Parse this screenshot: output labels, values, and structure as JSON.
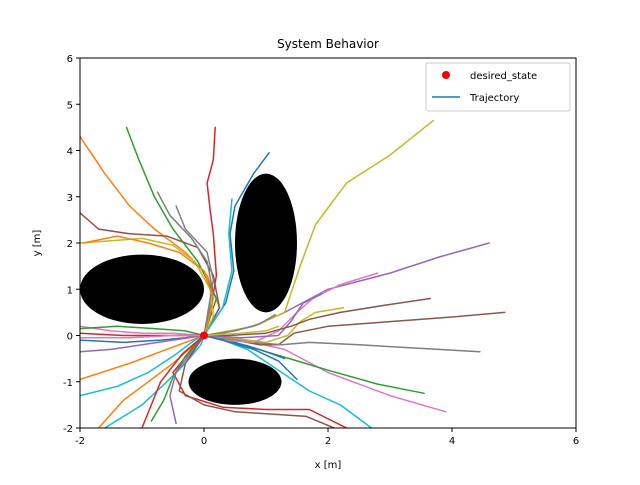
{
  "chart_data": {
    "type": "line",
    "title": "System Behavior",
    "xlabel": "x [m]",
    "ylabel": "y [m]",
    "xlim": [
      -2,
      6
    ],
    "ylim": [
      -2,
      6
    ],
    "xticks": [
      "-2",
      "0",
      "2",
      "4",
      "6"
    ],
    "yticks": [
      "-2",
      "-1",
      "0",
      "1",
      "2",
      "3",
      "4",
      "5",
      "6"
    ],
    "grid": false,
    "legend": {
      "placement": "top-right",
      "entries": [
        {
          "label": "desired_state",
          "marker": "dot",
          "color": "#ff0000"
        },
        {
          "label": "Trajectory",
          "marker": "line",
          "color": "#1f77b4"
        }
      ]
    },
    "desired_state": {
      "x": 0,
      "y": 0
    },
    "obstacles": [
      {
        "shape": "ellipse",
        "cx": -1.0,
        "cy": 1.0,
        "rx": 1.0,
        "ry": 0.75,
        "color": "#000000"
      },
      {
        "shape": "ellipse",
        "cx": 1.0,
        "cy": 2.0,
        "rx": 0.5,
        "ry": 1.5,
        "color": "#000000"
      },
      {
        "shape": "ellipse",
        "cx": 0.5,
        "cy": -1.0,
        "rx": 0.75,
        "ry": 0.5,
        "color": "#000000"
      }
    ],
    "series": [
      {
        "color": "#1f77b4",
        "points": [
          [
            1.05,
            3.95
          ],
          [
            0.8,
            3.5
          ],
          [
            0.5,
            2.8
          ],
          [
            0.42,
            2.2
          ],
          [
            0.48,
            1.4
          ],
          [
            0.35,
            0.7
          ],
          [
            0.0,
            0.0
          ]
        ]
      },
      {
        "color": "#ff7f0e",
        "points": [
          [
            -2.0,
            4.3
          ],
          [
            -1.6,
            3.5
          ],
          [
            -1.2,
            2.8
          ],
          [
            -0.8,
            2.3
          ],
          [
            -0.3,
            1.8
          ],
          [
            0.05,
            1.3
          ],
          [
            0.25,
            0.6
          ],
          [
            0.0,
            0.0
          ]
        ]
      },
      {
        "color": "#2ca02c",
        "points": [
          [
            -1.25,
            4.5
          ],
          [
            -1.05,
            3.8
          ],
          [
            -0.8,
            3.0
          ],
          [
            -0.5,
            2.3
          ],
          [
            -0.1,
            1.6
          ],
          [
            0.2,
            0.8
          ],
          [
            0.0,
            0.0
          ]
        ]
      },
      {
        "color": "#d62728",
        "points": [
          [
            0.18,
            4.5
          ],
          [
            0.15,
            3.8
          ],
          [
            0.05,
            3.3
          ],
          [
            0.1,
            2.7
          ],
          [
            0.15,
            2.2
          ],
          [
            0.2,
            1.3
          ],
          [
            0.1,
            0.5
          ],
          [
            0.0,
            0.0
          ]
        ]
      },
      {
        "color": "#9467bd",
        "points": [
          [
            4.6,
            2.0
          ],
          [
            3.8,
            1.7
          ],
          [
            3.0,
            1.35
          ],
          [
            2.0,
            1.0
          ],
          [
            1.3,
            0.5
          ],
          [
            0.8,
            0.2
          ],
          [
            0.3,
            0.05
          ],
          [
            0.0,
            0.0
          ]
        ]
      },
      {
        "color": "#8c564b",
        "points": [
          [
            -2.0,
            2.65
          ],
          [
            -1.7,
            2.3
          ],
          [
            -1.2,
            2.2
          ],
          [
            -0.6,
            2.15
          ],
          [
            -0.1,
            1.9
          ],
          [
            0.15,
            1.3
          ],
          [
            0.25,
            0.6
          ],
          [
            0.0,
            0.0
          ]
        ]
      },
      {
        "color": "#e377c2",
        "points": [
          [
            3.9,
            -1.65
          ],
          [
            3.0,
            -1.3
          ],
          [
            2.0,
            -0.8
          ],
          [
            1.3,
            -0.3
          ],
          [
            0.8,
            -0.15
          ],
          [
            0.3,
            -0.05
          ],
          [
            0.0,
            0.0
          ]
        ]
      },
      {
        "color": "#7f7f7f",
        "points": [
          [
            -0.75,
            3.1
          ],
          [
            -0.55,
            2.6
          ],
          [
            -0.2,
            2.1
          ],
          [
            0.05,
            1.6
          ],
          [
            0.15,
            0.9
          ],
          [
            0.05,
            0.3
          ],
          [
            0.0,
            0.0
          ]
        ]
      },
      {
        "color": "#bcbd22",
        "points": [
          [
            3.7,
            4.65
          ],
          [
            3.0,
            3.9
          ],
          [
            2.3,
            3.3
          ],
          [
            1.8,
            2.4
          ],
          [
            1.55,
            1.5
          ],
          [
            1.3,
            0.5
          ],
          [
            0.8,
            0.2
          ],
          [
            0.0,
            0.0
          ]
        ]
      },
      {
        "color": "#17becf",
        "points": [
          [
            -1.6,
            -2.0
          ],
          [
            -1.0,
            -1.5
          ],
          [
            -0.6,
            -1.0
          ],
          [
            -0.3,
            -0.6
          ],
          [
            -0.05,
            -0.2
          ],
          [
            0.0,
            0.0
          ]
        ]
      },
      {
        "color": "#1f77b4",
        "points": [
          [
            -2.0,
            -0.1
          ],
          [
            -1.3,
            -0.15
          ],
          [
            -0.7,
            -0.1
          ],
          [
            -0.3,
            -0.05
          ],
          [
            0.0,
            0.0
          ]
        ]
      },
      {
        "color": "#ff7f0e",
        "points": [
          [
            -2.0,
            -0.95
          ],
          [
            -1.2,
            -0.6
          ],
          [
            -0.5,
            -0.25
          ],
          [
            -0.1,
            -0.05
          ],
          [
            0.0,
            0.0
          ]
        ]
      },
      {
        "color": "#2ca02c",
        "points": [
          [
            3.55,
            -1.25
          ],
          [
            2.8,
            -1.05
          ],
          [
            2.0,
            -0.75
          ],
          [
            1.5,
            -0.55
          ],
          [
            1.0,
            -0.35
          ],
          [
            0.5,
            -0.15
          ],
          [
            0.0,
            0.0
          ]
        ]
      },
      {
        "color": "#d62728",
        "points": [
          [
            2.3,
            -2.0
          ],
          [
            1.7,
            -1.6
          ],
          [
            1.0,
            -1.6
          ],
          [
            0.3,
            -1.55
          ],
          [
            -0.3,
            -1.3
          ],
          [
            -0.5,
            -0.8
          ],
          [
            -0.2,
            -0.3
          ],
          [
            0.0,
            0.0
          ]
        ]
      },
      {
        "color": "#9467bd",
        "points": [
          [
            -2.0,
            -0.35
          ],
          [
            -1.5,
            -0.3
          ],
          [
            -1.0,
            -0.2
          ],
          [
            -0.5,
            -0.1
          ],
          [
            0.0,
            0.0
          ]
        ]
      },
      {
        "color": "#8c564b",
        "points": [
          [
            4.85,
            0.5
          ],
          [
            4.0,
            0.4
          ],
          [
            3.0,
            0.3
          ],
          [
            2.0,
            0.2
          ],
          [
            1.45,
            0.05
          ],
          [
            1.2,
            -0.2
          ],
          [
            0.9,
            -0.2
          ],
          [
            0.5,
            -0.1
          ],
          [
            0.0,
            0.0
          ]
        ]
      },
      {
        "color": "#e377c2",
        "points": [
          [
            -2.0,
            0.2
          ],
          [
            -1.5,
            0.1
          ],
          [
            -1.0,
            0.05
          ],
          [
            -0.5,
            0.05
          ],
          [
            0.0,
            0.0
          ]
        ]
      },
      {
        "color": "#7f7f7f",
        "points": [
          [
            4.45,
            -0.35
          ],
          [
            3.5,
            -0.28
          ],
          [
            2.5,
            -0.2
          ],
          [
            1.7,
            -0.15
          ],
          [
            1.25,
            -0.2
          ],
          [
            0.8,
            -0.15
          ],
          [
            0.0,
            0.0
          ]
        ]
      },
      {
        "color": "#bcbd22",
        "points": [
          [
            -2.0,
            2.0
          ],
          [
            -1.5,
            2.05
          ],
          [
            -1.0,
            2.1
          ],
          [
            -0.5,
            1.95
          ],
          [
            -0.15,
            1.6
          ],
          [
            0.1,
            1.0
          ],
          [
            0.15,
            0.4
          ],
          [
            0.0,
            0.0
          ]
        ]
      },
      {
        "color": "#17becf",
        "points": [
          [
            -2.0,
            -1.3
          ],
          [
            -1.4,
            -1.1
          ],
          [
            -0.9,
            -0.8
          ],
          [
            -0.5,
            -0.45
          ],
          [
            -0.15,
            -0.1
          ],
          [
            0.0,
            0.0
          ]
        ]
      },
      {
        "color": "#1f77b4",
        "points": [
          [
            1.3,
            -0.5
          ],
          [
            1.0,
            -0.35
          ],
          [
            0.7,
            -0.22
          ],
          [
            0.3,
            -0.1
          ],
          [
            0.0,
            0.0
          ]
        ]
      },
      {
        "color": "#ff7f0e",
        "points": [
          [
            -1.7,
            -2.0
          ],
          [
            -1.3,
            -1.4
          ],
          [
            -0.9,
            -1.0
          ],
          [
            -0.5,
            -0.6
          ],
          [
            -0.2,
            -0.25
          ],
          [
            0.0,
            0.0
          ]
        ]
      },
      {
        "color": "#2ca02c",
        "points": [
          [
            -0.85,
            -1.85
          ],
          [
            -0.65,
            -1.4
          ],
          [
            -0.5,
            -0.9
          ],
          [
            -0.3,
            -0.45
          ],
          [
            -0.05,
            -0.05
          ],
          [
            0.0,
            0.0
          ]
        ]
      },
      {
        "color": "#d62728",
        "points": [
          [
            -1.0,
            -2.0
          ],
          [
            -0.85,
            -1.5
          ],
          [
            -0.7,
            -1.0
          ],
          [
            -0.35,
            -0.4
          ],
          [
            0.0,
            0.0
          ]
        ]
      },
      {
        "color": "#9467bd",
        "points": [
          [
            -0.45,
            -1.9
          ],
          [
            -0.55,
            -1.3
          ],
          [
            -0.45,
            -0.8
          ],
          [
            -0.2,
            -0.35
          ],
          [
            0.0,
            0.0
          ]
        ]
      },
      {
        "color": "#8c564b",
        "points": [
          [
            2.1,
            -2.0
          ],
          [
            1.65,
            -1.75
          ],
          [
            1.1,
            -1.7
          ],
          [
            0.5,
            -1.65
          ],
          [
            0.0,
            -1.5
          ],
          [
            -0.4,
            -1.2
          ],
          [
            -0.3,
            -0.6
          ],
          [
            0.0,
            0.0
          ]
        ]
      },
      {
        "color": "#e377c2",
        "points": [
          [
            2.8,
            1.35
          ],
          [
            2.2,
            1.1
          ],
          [
            1.75,
            0.8
          ],
          [
            1.5,
            0.5
          ],
          [
            1.2,
            0.1
          ],
          [
            0.8,
            -0.15
          ],
          [
            0.3,
            -0.1
          ],
          [
            0.0,
            0.0
          ]
        ]
      },
      {
        "color": "#7f7f7f",
        "points": [
          [
            -0.45,
            2.8
          ],
          [
            -0.3,
            2.3
          ],
          [
            0.05,
            1.8
          ],
          [
            0.15,
            1.2
          ],
          [
            0.05,
            0.4
          ],
          [
            0.0,
            0.0
          ]
        ]
      },
      {
        "color": "#bcbd22",
        "points": [
          [
            2.25,
            0.6
          ],
          [
            1.8,
            0.5
          ],
          [
            1.55,
            0.3
          ],
          [
            1.35,
            0.0
          ],
          [
            1.0,
            -0.15
          ],
          [
            0.4,
            -0.05
          ],
          [
            0.0,
            0.0
          ]
        ]
      },
      {
        "color": "#17becf",
        "points": [
          [
            2.7,
            -2.0
          ],
          [
            2.2,
            -1.5
          ],
          [
            1.7,
            -1.2
          ],
          [
            1.2,
            -0.75
          ],
          [
            0.7,
            -0.3
          ],
          [
            0.3,
            -0.1
          ],
          [
            0.0,
            0.0
          ]
        ]
      },
      {
        "color": "#1f77b4",
        "points": [
          [
            1.5,
            -0.95
          ],
          [
            1.2,
            -0.55
          ],
          [
            0.8,
            -0.3
          ],
          [
            0.3,
            -0.1
          ],
          [
            0.0,
            0.0
          ]
        ]
      },
      {
        "color": "#ff7f0e",
        "points": [
          [
            -1.95,
            2.0
          ],
          [
            -1.4,
            2.15
          ],
          [
            -0.9,
            2.0
          ],
          [
            -0.4,
            1.8
          ],
          [
            0.0,
            1.4
          ],
          [
            0.15,
            0.8
          ],
          [
            0.05,
            0.2
          ],
          [
            0.0,
            0.0
          ]
        ]
      },
      {
        "color": "#2ca02c",
        "points": [
          [
            -2.0,
            0.15
          ],
          [
            -1.4,
            0.2
          ],
          [
            -0.8,
            0.15
          ],
          [
            -0.3,
            0.1
          ],
          [
            0.0,
            0.0
          ]
        ]
      },
      {
        "color": "#d62728",
        "points": [
          [
            -2.0,
            0.05
          ],
          [
            -1.3,
            0.0
          ],
          [
            -0.6,
            0.0
          ],
          [
            0.0,
            0.0
          ]
        ]
      },
      {
        "color": "#9467bd",
        "points": [
          [
            1.9,
            0.9
          ],
          [
            1.6,
            0.7
          ],
          [
            1.4,
            0.3
          ],
          [
            1.2,
            0.0
          ],
          [
            0.6,
            -0.05
          ],
          [
            0.0,
            0.0
          ]
        ]
      },
      {
        "color": "#8c564b",
        "points": [
          [
            3.65,
            0.8
          ],
          [
            2.9,
            0.65
          ],
          [
            2.2,
            0.5
          ],
          [
            1.7,
            0.35
          ],
          [
            1.4,
            0.2
          ],
          [
            1.0,
            0.05
          ],
          [
            0.4,
            0.0
          ],
          [
            0.0,
            0.0
          ]
        ]
      },
      {
        "color": "#e377c2",
        "points": [
          [
            -2.0,
            -0.05
          ],
          [
            -1.2,
            -0.05
          ],
          [
            -0.5,
            0.0
          ],
          [
            0.0,
            0.0
          ]
        ]
      },
      {
        "color": "#7f7f7f",
        "points": [
          [
            1.15,
            0.45
          ],
          [
            0.9,
            0.25
          ],
          [
            0.5,
            0.1
          ],
          [
            0.0,
            0.0
          ]
        ]
      },
      {
        "color": "#bcbd22",
        "points": [
          [
            1.2,
            0.2
          ],
          [
            1.0,
            0.1
          ],
          [
            0.6,
            0.05
          ],
          [
            0.0,
            0.0
          ]
        ]
      },
      {
        "color": "#17becf",
        "points": [
          [
            0.45,
            2.95
          ],
          [
            0.4,
            2.2
          ],
          [
            0.45,
            1.4
          ],
          [
            0.3,
            0.6
          ],
          [
            0.0,
            0.0
          ]
        ]
      }
    ]
  }
}
